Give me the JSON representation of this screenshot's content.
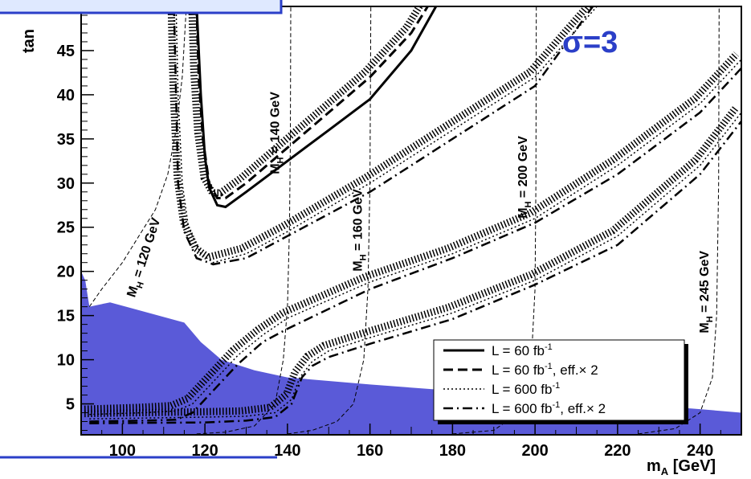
{
  "chart_data": {
    "type": "line",
    "xlabel": "m",
    "xlabel_sub": "A",
    "xlabel_unit": " [GeV]",
    "ylabel": "tan",
    "xlim": [
      90,
      250
    ],
    "ylim": [
      1.5,
      50
    ],
    "x_ticks": [
      100,
      120,
      140,
      160,
      180,
      200,
      220,
      240
    ],
    "y_ticks": [
      5,
      10,
      15,
      20,
      25,
      30,
      35,
      40,
      45
    ],
    "annotation": "σ=3",
    "colors": {
      "excluded": "#5a5ad8",
      "sigma_text": "#2b3fc8",
      "banner_fill": "#dfe9ff",
      "banner_border": "#2b3fc8"
    },
    "legend": {
      "placement": "bottom-right",
      "entries": [
        {
          "style": "solid",
          "label": "L = 60 fb",
          "sup": "-1",
          "suffix": ""
        },
        {
          "style": "dashed",
          "label": "L = 60 fb",
          "sup": "-1",
          "suffix": ", eff.× 2"
        },
        {
          "style": "dotted",
          "label": "L = 600 fb",
          "sup": "-1",
          "suffix": ""
        },
        {
          "style": "dashdot",
          "label": "L = 600 fb",
          "sup": "-1",
          "suffix": ", eff.× 2"
        }
      ]
    },
    "mh_contours": [
      {
        "label": "M",
        "sub": "H",
        "value": " = 120 GeV",
        "points": [
          [
            92,
            16
          ],
          [
            95,
            18
          ],
          [
            100,
            21
          ],
          [
            104,
            24
          ],
          [
            108,
            27
          ],
          [
            111,
            31
          ],
          [
            113,
            36
          ],
          [
            114.5,
            42
          ],
          [
            115.5,
            50
          ]
        ]
      },
      {
        "label": "M",
        "sub": "H",
        "value": " = 140 GeV",
        "points": [
          [
            118,
            1.6
          ],
          [
            125,
            1.8
          ],
          [
            132,
            2.5
          ],
          [
            137,
            5
          ],
          [
            139,
            10
          ],
          [
            140,
            16
          ],
          [
            140.5,
            25
          ],
          [
            140.7,
            35
          ],
          [
            140.8,
            50
          ]
        ]
      },
      {
        "label": "M",
        "sub": "H",
        "value": " = 160 GeV",
        "points": [
          [
            140,
            1.6
          ],
          [
            146,
            2
          ],
          [
            152,
            3
          ],
          [
            156,
            5
          ],
          [
            158.5,
            10
          ],
          [
            159.5,
            18
          ],
          [
            160,
            30
          ],
          [
            160.2,
            50
          ]
        ]
      },
      {
        "label": "M",
        "sub": "H",
        "value": " = 200 GeV",
        "points": [
          [
            180,
            1.6
          ],
          [
            190,
            2
          ],
          [
            196,
            4
          ],
          [
            199,
            9
          ],
          [
            200,
            18
          ],
          [
            200.2,
            30
          ],
          [
            200.3,
            50
          ]
        ]
      },
      {
        "label": "M",
        "sub": "H",
        "value": " = 245 GeV",
        "points": [
          [
            225,
            1.6
          ],
          [
            234,
            2.2
          ],
          [
            240,
            4
          ],
          [
            243,
            8
          ],
          [
            244,
            15
          ],
          [
            244.5,
            30
          ],
          [
            244.6,
            50
          ]
        ]
      }
    ],
    "excluded_region": [
      [
        90,
        20
      ],
      [
        91,
        19
      ],
      [
        92,
        16
      ],
      [
        97,
        16.5
      ],
      [
        115,
        14.2
      ],
      [
        119,
        12
      ],
      [
        124,
        10
      ],
      [
        132,
        8.8
      ],
      [
        140,
        8
      ],
      [
        160,
        7.2
      ],
      [
        180,
        6.5
      ],
      [
        200,
        5.8
      ],
      [
        220,
        5.1
      ],
      [
        240,
        4.4
      ],
      [
        250,
        4
      ],
      [
        250,
        1.5
      ],
      [
        90,
        1.5
      ]
    ],
    "series": [
      {
        "style": "solid",
        "points": [
          [
            118,
            50
          ],
          [
            119,
            40
          ],
          [
            120,
            33
          ],
          [
            121,
            29.5
          ],
          [
            123,
            27.5
          ],
          [
            125,
            27.3
          ],
          [
            130,
            29
          ],
          [
            140,
            32.5
          ],
          [
            150,
            36
          ],
          [
            160,
            39.5
          ],
          [
            170,
            45
          ],
          [
            176,
            50
          ]
        ]
      },
      {
        "style": "dashed",
        "points": [
          [
            118,
            50
          ],
          [
            118.5,
            42
          ],
          [
            119.5,
            35
          ],
          [
            121,
            30
          ],
          [
            123,
            28.3
          ],
          [
            125,
            28.3
          ],
          [
            130,
            30
          ],
          [
            140,
            34
          ],
          [
            150,
            38
          ],
          [
            160,
            42
          ],
          [
            170,
            47
          ],
          [
            174,
            50
          ]
        ]
      },
      {
        "style": "dotted",
        "points": [
          [
            113,
            50
          ],
          [
            113.5,
            40
          ],
          [
            114.5,
            30
          ],
          [
            116,
            25
          ],
          [
            119,
            22
          ],
          [
            122,
            21
          ],
          [
            130,
            22
          ],
          [
            140,
            24.5
          ],
          [
            160,
            30
          ],
          [
            180,
            36
          ],
          [
            200,
            42
          ],
          [
            215,
            50
          ]
        ]
      },
      {
        "style": "dashdot",
        "points": [
          [
            112.5,
            50
          ],
          [
            113,
            40
          ],
          [
            113.5,
            30
          ],
          [
            115,
            24.5
          ],
          [
            118,
            21.5
          ],
          [
            122,
            20.8
          ],
          [
            130,
            21.5
          ],
          [
            140,
            24
          ],
          [
            160,
            29
          ],
          [
            180,
            35
          ],
          [
            200,
            41
          ],
          [
            214,
            50
          ]
        ]
      },
      {
        "style": "dotted",
        "points": [
          [
            92,
            3.8
          ],
          [
            105,
            4
          ],
          [
            113,
            4.2
          ],
          [
            117,
            5
          ],
          [
            122,
            7.5
          ],
          [
            128,
            10.5
          ],
          [
            134,
            12.8
          ],
          [
            140,
            14.7
          ],
          [
            160,
            18.8
          ],
          [
            180,
            22
          ],
          [
            200,
            26
          ],
          [
            220,
            32
          ],
          [
            240,
            39
          ],
          [
            250,
            44
          ]
        ]
      },
      {
        "style": "dashdot",
        "points": [
          [
            92,
            3
          ],
          [
            105,
            3.1
          ],
          [
            113,
            3.2
          ],
          [
            117,
            4
          ],
          [
            122,
            6.5
          ],
          [
            128,
            9.5
          ],
          [
            134,
            12
          ],
          [
            140,
            13.5
          ],
          [
            160,
            18
          ],
          [
            180,
            21.5
          ],
          [
            200,
            25.5
          ],
          [
            220,
            31
          ],
          [
            240,
            38
          ],
          [
            250,
            43
          ]
        ]
      },
      {
        "style": "dotted",
        "points": [
          [
            92,
            3.3
          ],
          [
            120,
            3.5
          ],
          [
            130,
            3.6
          ],
          [
            137,
            4
          ],
          [
            141,
            5.5
          ],
          [
            143,
            8
          ],
          [
            146,
            9.8
          ],
          [
            150,
            11
          ],
          [
            160,
            12.5
          ],
          [
            180,
            15.3
          ],
          [
            200,
            19
          ],
          [
            220,
            24
          ],
          [
            240,
            32
          ],
          [
            250,
            38
          ]
        ]
      },
      {
        "style": "dashdot",
        "points": [
          [
            92,
            2.8
          ],
          [
            120,
            2.9
          ],
          [
            130,
            3.1
          ],
          [
            137,
            3.5
          ],
          [
            141,
            5
          ],
          [
            143.5,
            8
          ],
          [
            146,
            9.3
          ],
          [
            150,
            10.3
          ],
          [
            160,
            11.8
          ],
          [
            180,
            14.6
          ],
          [
            200,
            18.5
          ],
          [
            220,
            23
          ],
          [
            240,
            31
          ],
          [
            250,
            37
          ]
        ]
      }
    ]
  }
}
